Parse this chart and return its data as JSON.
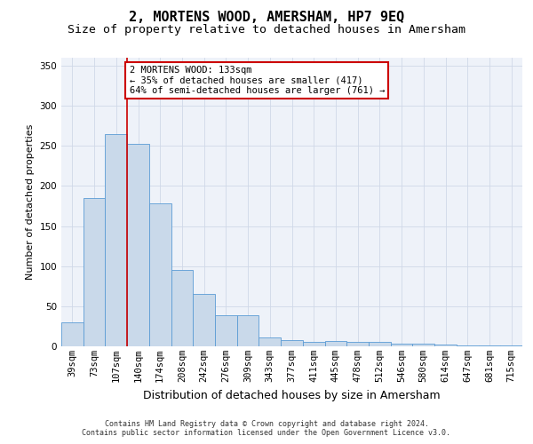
{
  "title": "2, MORTENS WOOD, AMERSHAM, HP7 9EQ",
  "subtitle": "Size of property relative to detached houses in Amersham",
  "xlabel": "Distribution of detached houses by size in Amersham",
  "ylabel": "Number of detached properties",
  "categories": [
    "39sqm",
    "73sqm",
    "107sqm",
    "140sqm",
    "174sqm",
    "208sqm",
    "242sqm",
    "276sqm",
    "309sqm",
    "343sqm",
    "377sqm",
    "411sqm",
    "445sqm",
    "478sqm",
    "512sqm",
    "546sqm",
    "580sqm",
    "614sqm",
    "647sqm",
    "681sqm",
    "715sqm"
  ],
  "values": [
    30,
    185,
    265,
    253,
    178,
    95,
    65,
    39,
    39,
    11,
    8,
    6,
    7,
    6,
    5,
    3,
    3,
    2,
    1,
    1,
    1
  ],
  "bar_color": "#c9d9ea",
  "bar_edge_color": "#5b9bd5",
  "vline_x": 2.5,
  "vline_color": "#cc0000",
  "annotation_line1": "2 MORTENS WOOD: 133sqm",
  "annotation_line2": "← 35% of detached houses are smaller (417)",
  "annotation_line3": "64% of semi-detached houses are larger (761) →",
  "annotation_box_color": "#ffffff",
  "annotation_box_edge_color": "#cc0000",
  "ylim": [
    0,
    360
  ],
  "yticks": [
    0,
    50,
    100,
    150,
    200,
    250,
    300,
    350
  ],
  "grid_color": "#d0d8e8",
  "background_color": "#eef2f9",
  "footer_line1": "Contains HM Land Registry data © Crown copyright and database right 2024.",
  "footer_line2": "Contains public sector information licensed under the Open Government Licence v3.0.",
  "title_fontsize": 11,
  "subtitle_fontsize": 9.5,
  "xlabel_fontsize": 9,
  "ylabel_fontsize": 8,
  "tick_fontsize": 7.5,
  "annotation_fontsize": 7.5,
  "footer_fontsize": 6
}
